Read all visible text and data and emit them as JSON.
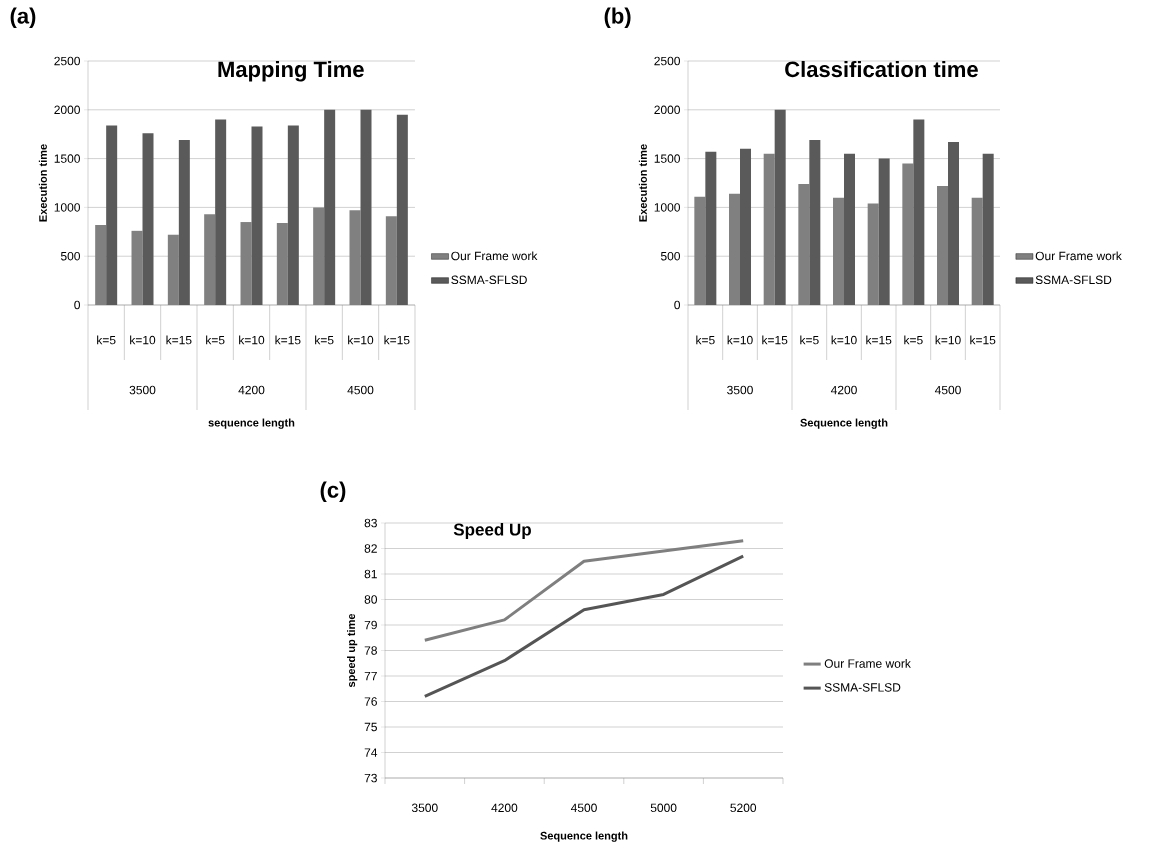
{
  "chart_data": [
    {
      "type": "bar",
      "title": "Mapping Time",
      "xlabel": "sequence length",
      "ylabel": "Execution time",
      "categories": [
        "k=5",
        "k=10",
        "k=15",
        "k=5",
        "k=10",
        "k=15",
        "k=5",
        "k=10",
        "k=15"
      ],
      "annotations": [
        "(a)",
        "3500",
        "4200",
        "4500"
      ],
      "series": [
        {
          "name": "Our Frame work",
          "color": "#808080",
          "values": [
            820,
            760,
            720,
            930,
            850,
            840,
            1000,
            970,
            910
          ]
        },
        {
          "name": "SSMA-SFLSD",
          "color": "#5a5a5a",
          "values": [
            1840,
            1760,
            1690,
            1900,
            1830,
            1840,
            2000,
            2000,
            1950
          ]
        }
      ],
      "ylim": [
        0,
        2500
      ],
      "yticks": [
        0,
        500,
        1000,
        1500,
        2000,
        2500
      ],
      "grid": "y",
      "legend": "right"
    },
    {
      "type": "bar",
      "title": "Classification time",
      "xlabel": "Sequence length",
      "ylabel": "Execution time",
      "categories": [
        "k=5",
        "k=10",
        "k=15",
        "k=5",
        "k=10",
        "k=15",
        "k=5",
        "k=10",
        "k=15"
      ],
      "annotations": [
        "(b)",
        "3500",
        "4200",
        "4500"
      ],
      "series": [
        {
          "name": "Our Frame work",
          "color": "#808080",
          "values": [
            1110,
            1140,
            1550,
            1240,
            1100,
            1040,
            1450,
            1220,
            1100
          ]
        },
        {
          "name": "SSMA-SFLSD",
          "color": "#5a5a5a",
          "values": [
            1570,
            1600,
            2000,
            1690,
            1550,
            1500,
            1900,
            1670,
            1550
          ]
        }
      ],
      "ylim": [
        0,
        2500
      ],
      "yticks": [
        0,
        500,
        1000,
        1500,
        2000,
        2500
      ],
      "grid": "y",
      "legend": "right"
    },
    {
      "type": "line",
      "title": "Speed Up",
      "xlabel": "Sequence length",
      "ylabel": "speed up time",
      "categories": [
        "3500",
        "4200",
        "4500",
        "5000",
        "5200"
      ],
      "annotations": [
        "(c)"
      ],
      "series": [
        {
          "name": "Our Frame work",
          "color": "#7f7f7f",
          "values": [
            78.4,
            79.2,
            81.5,
            81.9,
            82.3
          ]
        },
        {
          "name": "SSMA-SFLSD",
          "color": "#555555",
          "values": [
            76.2,
            77.6,
            79.6,
            80.2,
            81.7
          ]
        }
      ],
      "ylim": [
        73,
        83
      ],
      "yticks": [
        73,
        74,
        75,
        76,
        77,
        78,
        79,
        80,
        81,
        82,
        83
      ],
      "grid": "y",
      "legend": "right"
    }
  ]
}
